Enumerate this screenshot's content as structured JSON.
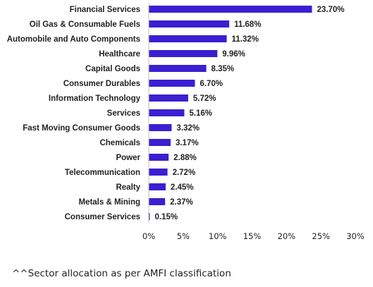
{
  "chart_data": {
    "type": "bar",
    "orientation": "horizontal",
    "categories": [
      "Financial Services",
      "Oil Gas & Consumable Fuels",
      "Automobile and Auto Components",
      "Healthcare",
      "Capital Goods",
      "Consumer Durables",
      "Information Technology",
      "Services",
      "Fast Moving Consumer Goods",
      "Chemicals",
      "Power",
      "Telecommunication",
      "Realty",
      "Metals & Mining",
      "Consumer Services"
    ],
    "values": [
      23.7,
      11.68,
      11.32,
      9.96,
      8.35,
      6.7,
      5.72,
      5.16,
      3.32,
      3.17,
      2.88,
      2.72,
      2.45,
      2.37,
      0.15
    ],
    "data_labels": [
      "23.70%",
      "11.68%",
      "11.32%",
      "9.96%",
      "8.35%",
      "6.70%",
      "5.72%",
      "5.16%",
      "3.32%",
      "3.17%",
      "2.88%",
      "2.72%",
      "2.45%",
      "2.37%",
      "0.15%"
    ],
    "x_ticks": [
      "0%",
      "5%",
      "10%",
      "15%",
      "20%",
      "25%",
      "30%"
    ],
    "x_tick_values": [
      0,
      5,
      10,
      15,
      20,
      25,
      30
    ],
    "xlim": [
      0,
      30
    ],
    "bar_color": "#3b1fd1",
    "grid": false,
    "legend": "none",
    "title": "",
    "xlabel": "",
    "ylabel": ""
  },
  "footnote": "^^Sector allocation as per AMFI classification"
}
